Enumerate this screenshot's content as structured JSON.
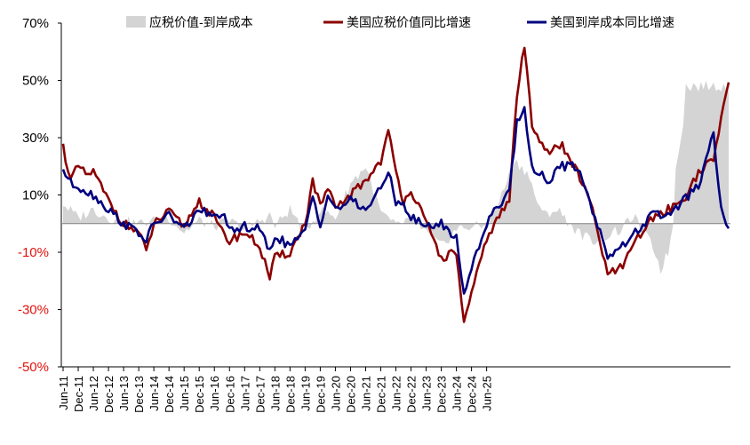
{
  "chart_data": {
    "type": "line",
    "title": "",
    "xlabel": "",
    "ylabel": "",
    "ylim": [
      -50,
      70
    ],
    "y_ticks": [
      70,
      50,
      30,
      10,
      -10,
      -30,
      -50
    ],
    "y_tick_labels": [
      "70%",
      "50%",
      "30%",
      "10%",
      "-10%",
      "-30%",
      "-50%"
    ],
    "x_tick_labels": [
      "Jun-11",
      "Dec-11",
      "Jun-12",
      "Dec-12",
      "Jun-13",
      "Dec-13",
      "Jun-14",
      "Dec-14",
      "Jun-15",
      "Dec-15",
      "Jun-16",
      "Dec-16",
      "Jun-17",
      "Dec-17",
      "Jun-18",
      "Dec-18",
      "Jun-19",
      "Dec-19",
      "Jun-20",
      "Dec-20",
      "Jun-21",
      "Dec-21",
      "Jun-22",
      "Dec-22",
      "Jun-23",
      "Dec-23",
      "Jun-24",
      "Dec-24",
      "Jun-25"
    ],
    "x_start": "Jun-11",
    "x_end": "Jun-25",
    "points_per_year": 12,
    "legend_position": "top",
    "series": [
      {
        "name": "应税价值-到岸成本",
        "type": "area",
        "color": "#d4d4d4",
        "keyframes": [
          [
            0,
            7
          ],
          [
            6,
            2
          ],
          [
            12,
            5
          ],
          [
            18,
            2
          ],
          [
            24,
            1
          ],
          [
            30,
            0
          ],
          [
            36,
            1
          ],
          [
            42,
            2
          ],
          [
            48,
            -3
          ],
          [
            54,
            1
          ],
          [
            60,
            -1
          ],
          [
            66,
            1
          ],
          [
            72,
            -2
          ],
          [
            78,
            1
          ],
          [
            82,
            3
          ],
          [
            84,
            -1
          ],
          [
            90,
            5
          ],
          [
            96,
            -3
          ],
          [
            102,
            5
          ],
          [
            108,
            2
          ],
          [
            114,
            14
          ],
          [
            120,
            20
          ],
          [
            126,
            4
          ],
          [
            132,
            -1
          ],
          [
            138,
            2
          ],
          [
            144,
            -3
          ],
          [
            150,
            -8
          ],
          [
            156,
            -2
          ],
          [
            162,
            -1
          ],
          [
            168,
            -1
          ],
          [
            174,
            10
          ],
          [
            179,
            22
          ],
          [
            184,
            18
          ],
          [
            190,
            3
          ],
          [
            196,
            5
          ],
          [
            202,
            -1
          ],
          [
            204,
            -3
          ],
          [
            210,
            -6
          ],
          [
            216,
            -4
          ],
          [
            222,
            -2
          ],
          [
            226,
            3
          ],
          [
            230,
            -3
          ],
          [
            234,
            -8
          ],
          [
            237,
            -16
          ],
          [
            240,
            -10
          ],
          [
            242,
            0
          ],
          [
            243,
            20
          ],
          [
            246,
            36
          ],
          [
            247,
            48
          ]
        ]
      },
      {
        "name": "美国应税价值同比增速",
        "type": "line",
        "color": "#8b0000",
        "keyframes": [
          [
            0,
            27
          ],
          [
            3,
            15
          ],
          [
            6,
            20
          ],
          [
            9,
            17
          ],
          [
            12,
            18
          ],
          [
            18,
            8
          ],
          [
            24,
            0
          ],
          [
            30,
            -3
          ],
          [
            33,
            -10
          ],
          [
            36,
            0
          ],
          [
            42,
            4
          ],
          [
            48,
            -1
          ],
          [
            54,
            8
          ],
          [
            60,
            2
          ],
          [
            63,
            -3
          ],
          [
            66,
            -6
          ],
          [
            72,
            -3
          ],
          [
            78,
            -8
          ],
          [
            82,
            -19
          ],
          [
            84,
            -12
          ],
          [
            90,
            -10
          ],
          [
            96,
            0
          ],
          [
            99,
            15
          ],
          [
            102,
            6
          ],
          [
            105,
            12
          ],
          [
            108,
            5
          ],
          [
            114,
            10
          ],
          [
            120,
            15
          ],
          [
            126,
            22
          ],
          [
            129,
            32
          ],
          [
            132,
            18
          ],
          [
            135,
            8
          ],
          [
            138,
            12
          ],
          [
            144,
            0
          ],
          [
            150,
            -12
          ],
          [
            156,
            -10
          ],
          [
            159,
            -35
          ],
          [
            162,
            -25
          ],
          [
            168,
            -5
          ],
          [
            174,
            4
          ],
          [
            177,
            8
          ],
          [
            180,
            45
          ],
          [
            183,
            62
          ],
          [
            186,
            35
          ],
          [
            192,
            25
          ],
          [
            198,
            27
          ],
          [
            204,
            18
          ],
          [
            210,
            5
          ],
          [
            216,
            -18
          ],
          [
            222,
            -15
          ],
          [
            228,
            -5
          ],
          [
            234,
            2
          ],
          [
            240,
            5
          ],
          [
            246,
            8
          ],
          [
            252,
            18
          ],
          [
            258,
            22
          ],
          [
            261,
            37
          ],
          [
            264,
            49
          ]
        ]
      },
      {
        "name": "美国到岸成本同比增速",
        "type": "line",
        "color": "#00007f",
        "keyframes": [
          [
            0,
            19
          ],
          [
            3,
            14
          ],
          [
            6,
            13
          ],
          [
            12,
            10
          ],
          [
            18,
            5
          ],
          [
            24,
            0
          ],
          [
            30,
            -3
          ],
          [
            33,
            -6
          ],
          [
            36,
            0
          ],
          [
            42,
            3
          ],
          [
            48,
            -2
          ],
          [
            54,
            5
          ],
          [
            60,
            2
          ],
          [
            63,
            4
          ],
          [
            66,
            -3
          ],
          [
            72,
            -1
          ],
          [
            78,
            -2
          ],
          [
            82,
            -10
          ],
          [
            84,
            -4
          ],
          [
            90,
            -8
          ],
          [
            96,
            -3
          ],
          [
            99,
            10
          ],
          [
            102,
            0
          ],
          [
            105,
            10
          ],
          [
            108,
            5
          ],
          [
            114,
            8
          ],
          [
            120,
            5
          ],
          [
            126,
            12
          ],
          [
            129,
            18
          ],
          [
            132,
            8
          ],
          [
            135,
            7
          ],
          [
            138,
            2
          ],
          [
            144,
            -1
          ],
          [
            150,
            0
          ],
          [
            156,
            -5
          ],
          [
            159,
            -25
          ],
          [
            162,
            -15
          ],
          [
            168,
            0
          ],
          [
            174,
            8
          ],
          [
            177,
            12
          ],
          [
            180,
            35
          ],
          [
            183,
            40
          ],
          [
            186,
            20
          ],
          [
            192,
            15
          ],
          [
            198,
            20
          ],
          [
            204,
            20
          ],
          [
            210,
            5
          ],
          [
            216,
            -11
          ],
          [
            222,
            -8
          ],
          [
            228,
            -2
          ],
          [
            234,
            3
          ],
          [
            240,
            3
          ],
          [
            246,
            8
          ],
          [
            252,
            13
          ],
          [
            258,
            31
          ],
          [
            261,
            5
          ],
          [
            264,
            -2
          ]
        ]
      }
    ]
  }
}
